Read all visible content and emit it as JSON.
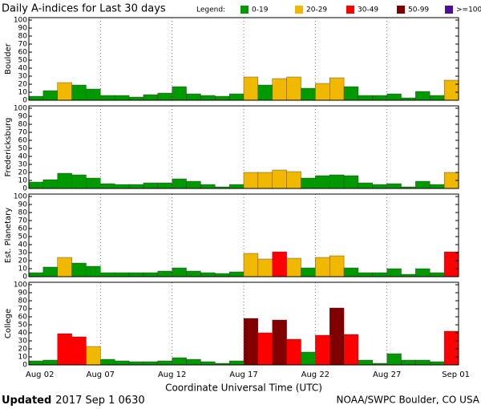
{
  "title": "Daily A-indices for Last 30 days",
  "legend_label": "Legend:",
  "legend": [
    {
      "label": "0-19",
      "color": "#009900",
      "min": 0
    },
    {
      "label": "20-29",
      "color": "#f0b800",
      "min": 20
    },
    {
      "label": "30-49",
      "color": "#ff0000",
      "min": 30
    },
    {
      "label": "50-99",
      "color": "#800000",
      "min": 50
    },
    {
      "label": ">=100",
      "color": "#4b0f9a",
      "min": 100
    }
  ],
  "x_axis": {
    "labels": [
      "Aug 02",
      "Aug 07",
      "Aug 12",
      "Aug 17",
      "Aug 22",
      "Aug 27",
      "Sep 01"
    ],
    "label": "Coordinate Universal Time (UTC)"
  },
  "chart_data": [
    {
      "type": "bar",
      "ylabel": "Boulder",
      "ylim": [
        0,
        100
      ],
      "yticks": [
        0,
        10,
        20,
        30,
        40,
        50,
        60,
        70,
        80,
        90,
        100
      ],
      "values": [
        5,
        12,
        22,
        19,
        14,
        6,
        6,
        4,
        7,
        9,
        17,
        8,
        6,
        5,
        8,
        29,
        19,
        27,
        29,
        15,
        21,
        28,
        17,
        6,
        6,
        8,
        3,
        11,
        6,
        25
      ]
    },
    {
      "type": "bar",
      "ylabel": "Fredericksburg",
      "ylim": [
        0,
        100
      ],
      "yticks": [
        0,
        10,
        20,
        30,
        40,
        50,
        60,
        70,
        80,
        90,
        100
      ],
      "values": [
        8,
        11,
        19,
        17,
        13,
        6,
        5,
        5,
        7,
        7,
        12,
        9,
        5,
        2,
        5,
        20,
        20,
        23,
        21,
        13,
        16,
        17,
        16,
        7,
        5,
        6,
        2,
        9,
        5,
        20
      ]
    },
    {
      "type": "bar",
      "ylabel": "Est. Planetary",
      "ylim": [
        0,
        100
      ],
      "yticks": [
        0,
        10,
        20,
        30,
        40,
        50,
        60,
        70,
        80,
        90,
        100
      ],
      "values": [
        5,
        12,
        24,
        17,
        13,
        5,
        5,
        5,
        5,
        7,
        11,
        7,
        5,
        4,
        6,
        29,
        22,
        31,
        23,
        11,
        24,
        26,
        11,
        5,
        5,
        10,
        3,
        10,
        5,
        31
      ]
    },
    {
      "type": "bar",
      "ylabel": "College",
      "ylim": [
        0,
        100
      ],
      "yticks": [
        0,
        10,
        20,
        30,
        40,
        50,
        60,
        70,
        80,
        90,
        100
      ],
      "values": [
        5,
        6,
        39,
        35,
        23,
        7,
        5,
        4,
        4,
        5,
        9,
        7,
        4,
        2,
        5,
        58,
        40,
        56,
        32,
        16,
        37,
        71,
        38,
        6,
        2,
        14,
        6,
        6,
        4,
        42
      ]
    }
  ],
  "footer": {
    "updated_label": "Updated",
    "updated": "2017 Sep  1 0630",
    "credit": "NOAA/SWPC Boulder, CO USA"
  }
}
